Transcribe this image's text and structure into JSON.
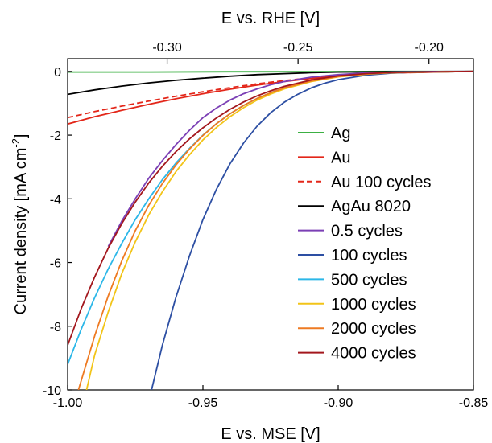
{
  "chart_data": {
    "type": "line",
    "xlabel_bottom": "E vs. MSE [V]",
    "xlabel_top": "E vs. RHE [V]",
    "ylabel_main": "Current density [mA cm",
    "ylabel_sup": "-2",
    "ylabel_end": "]",
    "xlim": [
      -1.0,
      -0.85
    ],
    "ylim": [
      -10,
      0.4
    ],
    "xticks": [
      -1.0,
      -0.95,
      -0.9,
      -0.85
    ],
    "xtick_labels": [
      "-1.00",
      "-0.95",
      "-0.90",
      "-0.85"
    ],
    "xticks_top": [
      -0.3,
      -0.25,
      -0.2
    ],
    "xtick_labels_top": [
      "-0.30",
      "-0.25",
      "-0.20"
    ],
    "yticks": [
      0,
      -2,
      -4,
      -6,
      -8,
      -10
    ],
    "ytick_labels": [
      "0",
      "-2",
      "-4",
      "-6",
      "-8",
      "-10"
    ],
    "grid": false,
    "legend_position": "right",
    "series": [
      {
        "name": "Ag",
        "color": "#3cb043",
        "dash": false,
        "x": [
          -1.0,
          -0.97,
          -0.94,
          -0.91,
          -0.88,
          -0.85
        ],
        "y": [
          -0.02,
          -0.02,
          -0.01,
          -0.01,
          0.0,
          0.0
        ]
      },
      {
        "name": "Au",
        "color": "#e32619",
        "dash": false,
        "x": [
          -1.0,
          -0.99,
          -0.98,
          -0.97,
          -0.96,
          -0.95,
          -0.94,
          -0.93,
          -0.92,
          -0.91,
          -0.9,
          -0.89,
          -0.88,
          -0.86,
          -0.85
        ],
        "y": [
          -1.65,
          -1.42,
          -1.22,
          -1.03,
          -0.86,
          -0.7,
          -0.56,
          -0.43,
          -0.32,
          -0.22,
          -0.15,
          -0.09,
          -0.05,
          -0.01,
          0.0
        ]
      },
      {
        "name": "Au 100 cycles",
        "color": "#e32619",
        "dash": true,
        "x": [
          -1.0,
          -0.99,
          -0.98,
          -0.97,
          -0.96,
          -0.95,
          -0.94,
          -0.93,
          -0.92,
          -0.91,
          -0.9,
          -0.89,
          -0.88,
          -0.86,
          -0.85
        ],
        "y": [
          -1.45,
          -1.26,
          -1.09,
          -0.93,
          -0.78,
          -0.64,
          -0.51,
          -0.39,
          -0.29,
          -0.2,
          -0.13,
          -0.08,
          -0.04,
          -0.01,
          0.0
        ]
      },
      {
        "name": "AgAu 8020",
        "color": "#000000",
        "dash": false,
        "x": [
          -1.0,
          -0.99,
          -0.98,
          -0.97,
          -0.96,
          -0.95,
          -0.94,
          -0.93,
          -0.92,
          -0.91,
          -0.9,
          -0.88,
          -0.85
        ],
        "y": [
          -0.72,
          -0.58,
          -0.46,
          -0.36,
          -0.28,
          -0.21,
          -0.15,
          -0.1,
          -0.07,
          -0.04,
          -0.02,
          -0.01,
          0.0
        ]
      },
      {
        "name": "0.5 cycles",
        "color": "#7b3fb5",
        "dash": false,
        "x": [
          -0.985,
          -0.98,
          -0.975,
          -0.97,
          -0.965,
          -0.96,
          -0.955,
          -0.95,
          -0.945,
          -0.94,
          -0.935,
          -0.93,
          -0.925,
          -0.92,
          -0.91,
          -0.9,
          -0.89,
          -0.88,
          -0.86,
          -0.85
        ],
        "y": [
          -5.5,
          -4.7,
          -4.0,
          -3.35,
          -2.8,
          -2.3,
          -1.85,
          -1.45,
          -1.15,
          -0.9,
          -0.7,
          -0.55,
          -0.42,
          -0.32,
          -0.18,
          -0.1,
          -0.05,
          -0.02,
          0.0,
          0.0
        ]
      },
      {
        "name": "100 cycles",
        "color": "#2d4fa3",
        "dash": false,
        "x": [
          -0.969,
          -0.965,
          -0.96,
          -0.955,
          -0.95,
          -0.945,
          -0.94,
          -0.935,
          -0.93,
          -0.925,
          -0.92,
          -0.915,
          -0.91,
          -0.905,
          -0.9,
          -0.89,
          -0.88,
          -0.87,
          -0.86,
          -0.85
        ],
        "y": [
          -10.0,
          -8.6,
          -7.1,
          -5.8,
          -4.65,
          -3.7,
          -2.9,
          -2.25,
          -1.72,
          -1.3,
          -0.97,
          -0.72,
          -0.52,
          -0.37,
          -0.26,
          -0.12,
          -0.05,
          -0.02,
          -0.01,
          0.0
        ]
      },
      {
        "name": "500 cycles",
        "color": "#2cb7e8",
        "dash": false,
        "x": [
          -1.0,
          -0.995,
          -0.99,
          -0.985,
          -0.98,
          -0.975,
          -0.97,
          -0.965,
          -0.96,
          -0.955,
          -0.95,
          -0.945,
          -0.94,
          -0.935,
          -0.93,
          -0.925,
          -0.92,
          -0.91,
          -0.9,
          -0.89,
          -0.88,
          -0.86,
          -0.85
        ],
        "y": [
          -9.2,
          -8.1,
          -7.1,
          -6.2,
          -5.4,
          -4.65,
          -4.0,
          -3.4,
          -2.88,
          -2.42,
          -2.0,
          -1.64,
          -1.33,
          -1.07,
          -0.85,
          -0.67,
          -0.52,
          -0.3,
          -0.16,
          -0.08,
          -0.04,
          -0.01,
          0.0
        ]
      },
      {
        "name": "1000 cycles",
        "color": "#f2c418",
        "dash": false,
        "x": [
          -0.993,
          -0.99,
          -0.985,
          -0.98,
          -0.975,
          -0.97,
          -0.965,
          -0.96,
          -0.955,
          -0.95,
          -0.945,
          -0.94,
          -0.935,
          -0.93,
          -0.925,
          -0.92,
          -0.91,
          -0.9,
          -0.89,
          -0.88,
          -0.86,
          -0.85
        ],
        "y": [
          -10.0,
          -8.9,
          -7.55,
          -6.35,
          -5.35,
          -4.5,
          -3.78,
          -3.15,
          -2.62,
          -2.15,
          -1.76,
          -1.42,
          -1.14,
          -0.9,
          -0.71,
          -0.55,
          -0.32,
          -0.17,
          -0.09,
          -0.04,
          -0.01,
          0.0
        ]
      },
      {
        "name": "2000 cycles",
        "color": "#ee7a22",
        "dash": false,
        "x": [
          -0.996,
          -0.99,
          -0.985,
          -0.98,
          -0.975,
          -0.97,
          -0.965,
          -0.96,
          -0.955,
          -0.95,
          -0.945,
          -0.94,
          -0.935,
          -0.93,
          -0.925,
          -0.92,
          -0.91,
          -0.9,
          -0.89,
          -0.88,
          -0.86,
          -0.85
        ],
        "y": [
          -10.0,
          -8.3,
          -7.05,
          -5.95,
          -5.0,
          -4.2,
          -3.52,
          -2.94,
          -2.44,
          -2.01,
          -1.64,
          -1.33,
          -1.07,
          -0.85,
          -0.67,
          -0.52,
          -0.3,
          -0.16,
          -0.08,
          -0.04,
          -0.01,
          0.0
        ]
      },
      {
        "name": "4000 cycles",
        "color": "#a3171d",
        "dash": false,
        "x": [
          -1.0,
          -0.995,
          -0.99,
          -0.985,
          -0.98,
          -0.975,
          -0.97,
          -0.965,
          -0.96,
          -0.955,
          -0.95,
          -0.945,
          -0.94,
          -0.935,
          -0.93,
          -0.925,
          -0.92,
          -0.91,
          -0.9,
          -0.89,
          -0.88,
          -0.86,
          -0.85
        ],
        "y": [
          -8.6,
          -7.45,
          -6.45,
          -5.55,
          -4.78,
          -4.1,
          -3.5,
          -2.98,
          -2.52,
          -2.12,
          -1.77,
          -1.46,
          -1.19,
          -0.96,
          -0.77,
          -0.61,
          -0.47,
          -0.27,
          -0.14,
          -0.07,
          -0.03,
          -0.01,
          0.0
        ]
      }
    ]
  }
}
